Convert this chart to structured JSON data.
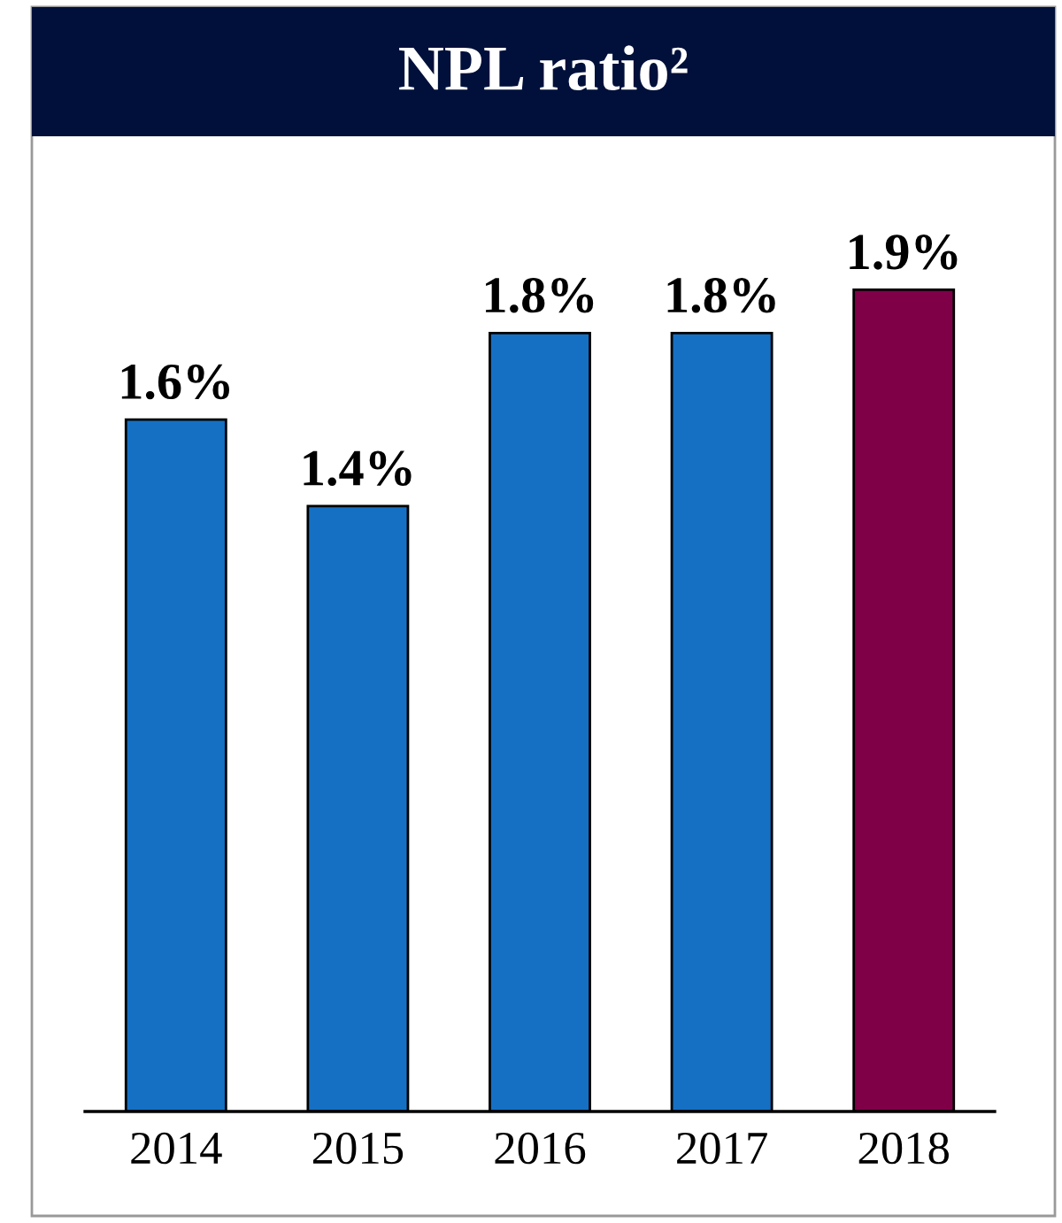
{
  "chart_data": {
    "type": "bar",
    "title": "NPL ratio²",
    "categories": [
      "2014",
      "2015",
      "2016",
      "2017",
      "2018"
    ],
    "values": [
      1.6,
      1.4,
      1.8,
      1.8,
      1.9
    ],
    "colors": [
      "#1570c4",
      "#1570c4",
      "#1570c4",
      "#1570c4",
      "#800048"
    ],
    "value_labels": [
      "1.6%",
      "1.4%",
      "1.8%",
      "1.8%",
      "1.9%"
    ],
    "grid": false,
    "legend": false
  }
}
